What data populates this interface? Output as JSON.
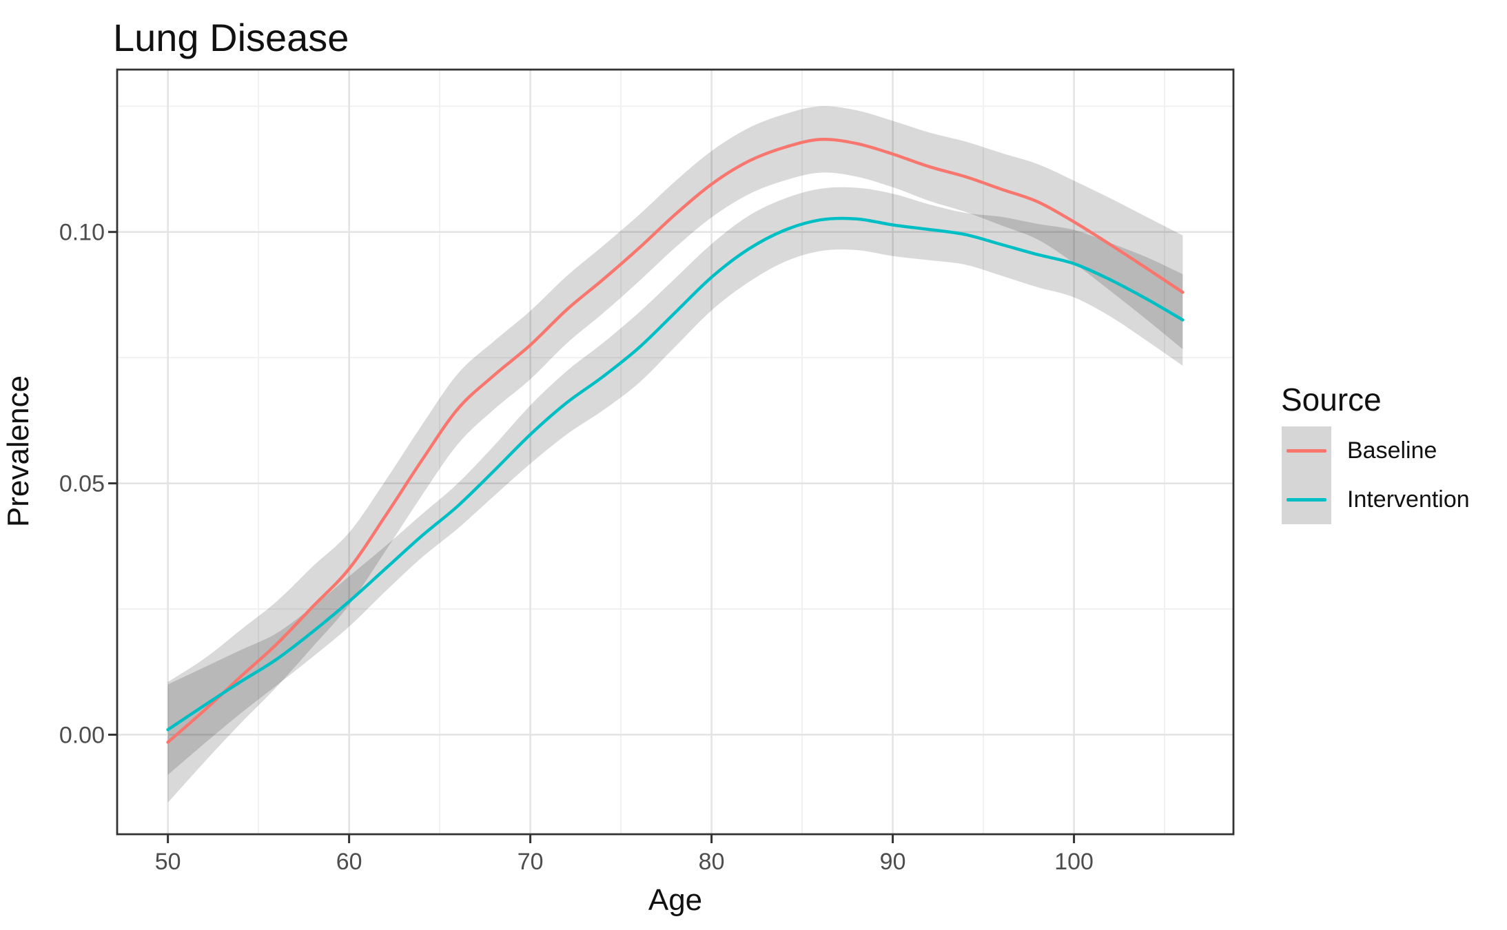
{
  "header": {
    "title": "Lung Disease"
  },
  "legend": {
    "title": "Source",
    "position": "right",
    "key_fill": "#d6d6d6",
    "items": [
      {
        "label": "Baseline",
        "color": "#F8766D"
      },
      {
        "label": "Intervention",
        "color": "#00BFC4"
      }
    ]
  },
  "colors": {
    "baseline_line": "#F8766D",
    "intervention_line": "#00BFC4",
    "ribbon": "rgba(0,0,0,0.15)",
    "grid_major": "#e3e3e3",
    "grid_minor": "#f0f0f0",
    "panel_border": "#333333",
    "tick": "#333333",
    "tick_label": "#4d4d4d",
    "text": "#111111",
    "background": "#ffffff"
  },
  "chart_data": {
    "type": "line",
    "title": "Lung Disease",
    "xlabel": "Age",
    "ylabel": "Prevalence",
    "grid": true,
    "legend_position": "right",
    "x_domain": [
      47.2,
      108.8
    ],
    "y_domain": [
      -0.0198,
      0.1323
    ],
    "x_major_ticks": [
      50,
      60,
      70,
      80,
      90,
      100
    ],
    "x_tick_labels": [
      "50",
      "60",
      "70",
      "80",
      "90",
      "100"
    ],
    "x_minor_ticks": [
      55,
      65,
      75,
      85,
      95,
      105
    ],
    "y_major_ticks": [
      0.0,
      0.05,
      0.1
    ],
    "y_tick_labels": [
      "0.00",
      "0.05",
      "0.10"
    ],
    "y_minor_ticks": [
      0.025,
      0.075,
      0.125
    ],
    "x": [
      50,
      52,
      54,
      56,
      58,
      60,
      62,
      64,
      66,
      68,
      70,
      72,
      74,
      76,
      78,
      80,
      82,
      84,
      86,
      88,
      90,
      92,
      94,
      96,
      98,
      100,
      102,
      104,
      106
    ],
    "series": [
      {
        "name": "Baseline",
        "color": "#F8766D",
        "values": [
          -0.0015,
          0.0048,
          0.0115,
          0.018,
          0.0255,
          0.033,
          0.0435,
          0.0545,
          0.0648,
          0.0715,
          0.0775,
          0.0845,
          0.0905,
          0.0968,
          0.1035,
          0.1095,
          0.114,
          0.1168,
          0.1184,
          0.1176,
          0.1155,
          0.113,
          0.111,
          0.1085,
          0.106,
          0.102,
          0.0975,
          0.0928,
          0.088
        ],
        "ci_low": [
          -0.0135,
          -0.0055,
          0.0022,
          0.0095,
          0.0175,
          0.0258,
          0.0365,
          0.0475,
          0.0578,
          0.0647,
          0.0707,
          0.0778,
          0.0838,
          0.0902,
          0.0969,
          0.1029,
          0.1074,
          0.1102,
          0.1118,
          0.111,
          0.1089,
          0.1062,
          0.104,
          0.1013,
          0.0985,
          0.0938,
          0.0883,
          0.0826,
          0.0767
        ],
        "ci_high": [
          0.0105,
          0.0151,
          0.0208,
          0.0265,
          0.0335,
          0.0402,
          0.0505,
          0.0615,
          0.0718,
          0.0783,
          0.0843,
          0.0912,
          0.0972,
          0.1034,
          0.1101,
          0.1161,
          0.1206,
          0.1234,
          0.125,
          0.1242,
          0.1221,
          0.1198,
          0.118,
          0.1157,
          0.1135,
          0.1102,
          0.1067,
          0.103,
          0.0993
        ]
      },
      {
        "name": "Intervention",
        "color": "#00BFC4",
        "values": [
          0.001,
          0.0058,
          0.0105,
          0.015,
          0.0205,
          0.0265,
          0.033,
          0.0395,
          0.0455,
          0.0525,
          0.0597,
          0.066,
          0.0712,
          0.077,
          0.084,
          0.091,
          0.0965,
          0.1003,
          0.1024,
          0.1026,
          0.1014,
          0.1005,
          0.0995,
          0.0975,
          0.0955,
          0.0937,
          0.0905,
          0.0867,
          0.0825
        ],
        "ci_low": [
          -0.008,
          -0.0018,
          0.0042,
          0.0098,
          0.0155,
          0.0215,
          0.0285,
          0.0352,
          0.041,
          0.0475,
          0.0539,
          0.0597,
          0.0645,
          0.07,
          0.0772,
          0.0844,
          0.0899,
          0.094,
          0.0962,
          0.0964,
          0.0952,
          0.0944,
          0.0935,
          0.0913,
          0.089,
          0.087,
          0.0832,
          0.0784,
          0.0734
        ],
        "ci_high": [
          0.01,
          0.0134,
          0.0168,
          0.0202,
          0.0255,
          0.0315,
          0.0375,
          0.0438,
          0.05,
          0.0575,
          0.0655,
          0.0723,
          0.0779,
          0.084,
          0.0908,
          0.0976,
          0.1031,
          0.1066,
          0.1086,
          0.1088,
          0.1076,
          0.1055,
          0.1038,
          0.103,
          0.1016,
          0.1004,
          0.0978,
          0.095,
          0.0916
        ]
      }
    ]
  }
}
